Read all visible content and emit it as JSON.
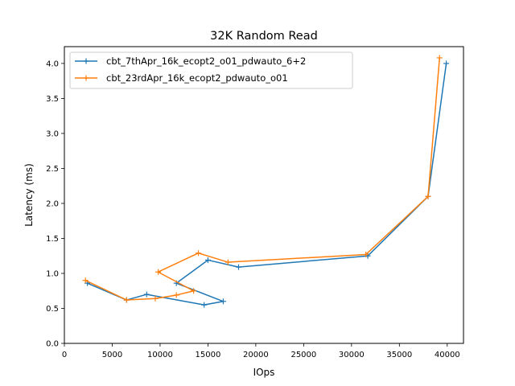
{
  "chart_data": {
    "type": "line",
    "title": "32K  Random Read",
    "xlabel": "IOps",
    "ylabel": "Latency (ms)",
    "xlim": [
      0,
      41700
    ],
    "ylim": [
      0,
      4.24
    ],
    "xticks": [
      0,
      5000,
      10000,
      15000,
      20000,
      25000,
      30000,
      35000,
      40000
    ],
    "xtick_labels": [
      "0",
      "5000",
      "10000",
      "15000",
      "20000",
      "25000",
      "30000",
      "35000",
      "40000"
    ],
    "yticks": [
      0.0,
      0.5,
      1.0,
      1.5,
      2.0,
      2.5,
      3.0,
      3.5,
      4.0
    ],
    "ytick_labels": [
      "0.0",
      "0.5",
      "1.0",
      "1.5",
      "2.0",
      "2.5",
      "3.0",
      "3.5",
      "4.0"
    ],
    "grid": false,
    "legend_position": "top-left",
    "series": [
      {
        "name": "cbt_7thApr_16k_ecopt2_o01_pdwauto_6+2",
        "color": "#1f77b4",
        "marker": "plus",
        "points": [
          [
            2400,
            0.86
          ],
          [
            6500,
            0.62
          ],
          [
            8600,
            0.7
          ],
          [
            14600,
            0.55
          ],
          [
            16600,
            0.6
          ],
          [
            11700,
            0.86
          ],
          [
            15000,
            1.19
          ],
          [
            18200,
            1.09
          ],
          [
            31700,
            1.25
          ],
          [
            38000,
            2.1
          ],
          [
            39900,
            4.0
          ]
        ]
      },
      {
        "name": "cbt_23rdApr_16k_ecopt2_pdwauto_o01",
        "color": "#ff7f0e",
        "marker": "plus",
        "points": [
          [
            2200,
            0.9
          ],
          [
            6500,
            0.62
          ],
          [
            9500,
            0.64
          ],
          [
            11700,
            0.69
          ],
          [
            13500,
            0.75
          ],
          [
            9800,
            1.02
          ],
          [
            14000,
            1.29
          ],
          [
            17100,
            1.16
          ],
          [
            31500,
            1.27
          ],
          [
            38000,
            2.1
          ],
          [
            39200,
            4.08
          ]
        ]
      }
    ]
  }
}
